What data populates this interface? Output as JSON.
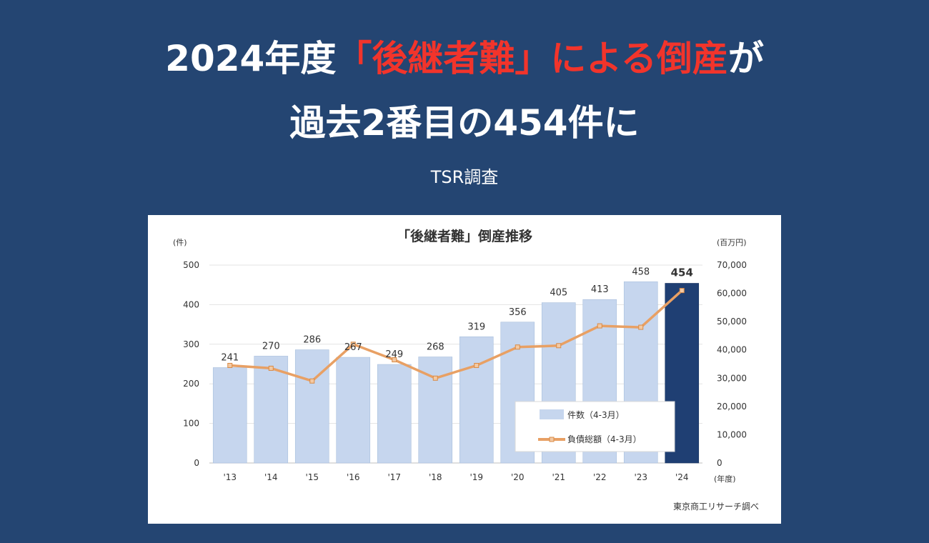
{
  "header": {
    "line1_pre": "2024年度",
    "line1_highlight": "「後継者難」による倒産",
    "line1_post": "が",
    "line2": "過去2番目の454件に",
    "source_tag": "TSR調査"
  },
  "colors": {
    "background": "#244572",
    "highlight": "#f2342b",
    "bar": "#c6d6ee",
    "bar_highlight": "#1f3f73",
    "line": "#e8a064"
  },
  "chart_data": {
    "type": "bar",
    "title": "「後継者難」倒産推移",
    "categories": [
      "'13",
      "'14",
      "'15",
      "'16",
      "'17",
      "'18",
      "'19",
      "'20",
      "'21",
      "'22",
      "'23",
      "'24"
    ],
    "y_left_unit": "(件)",
    "y_right_unit": "(百万円)",
    "x_unit": "(年度)",
    "ylim_left": [
      0,
      500
    ],
    "ylim_right": [
      0,
      70000
    ],
    "yticks_left": [
      "0",
      "100",
      "200",
      "300",
      "400",
      "500"
    ],
    "yticks_right": [
      "0",
      "10,000",
      "20,000",
      "30,000",
      "40,000",
      "50,000",
      "60,000",
      "70,000"
    ],
    "grid": true,
    "legend_position": "bottom-right",
    "series": [
      {
        "name": "件数（4-3月）",
        "type": "bar",
        "axis": "left",
        "values": [
          241,
          270,
          286,
          267,
          249,
          268,
          319,
          356,
          405,
          413,
          458,
          454
        ],
        "labels": [
          "241",
          "270",
          "286",
          "267",
          "249",
          "268",
          "319",
          "356",
          "405",
          "413",
          "458",
          "454"
        ],
        "highlight_index": 11
      },
      {
        "name": "負債総額（4-3月）",
        "type": "line",
        "axis": "right",
        "values": [
          34500,
          33500,
          29000,
          42000,
          36500,
          30000,
          34500,
          41000,
          41500,
          48500,
          48000,
          61000
        ]
      }
    ],
    "source": "東京商工リサーチ調べ"
  }
}
